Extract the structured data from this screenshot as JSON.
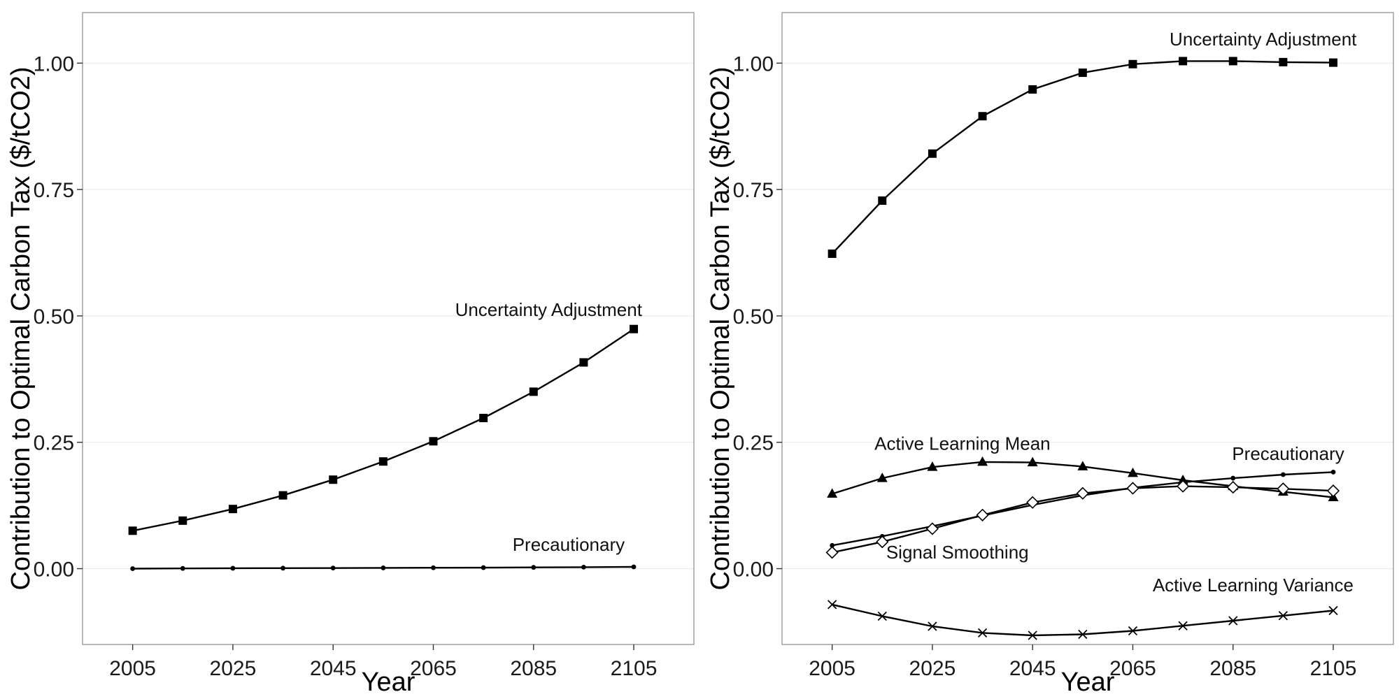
{
  "chart_data": [
    {
      "type": "line",
      "xlabel": "Year",
      "ylabel": "Contribution to Optimal Carbon Tax ($/tCO2)",
      "xlim": [
        1995,
        2117
      ],
      "ylim": [
        -0.15,
        1.1
      ],
      "x_ticks": [
        2005,
        2025,
        2045,
        2065,
        2085,
        2105
      ],
      "y_ticks": [
        0.0,
        0.25,
        0.5,
        0.75,
        1.0
      ],
      "y_tick_labels": [
        "0.00",
        "0.25",
        "0.50",
        "0.75",
        "1.00"
      ],
      "x": [
        2005,
        2015,
        2025,
        2035,
        2045,
        2055,
        2065,
        2075,
        2085,
        2095,
        2105
      ],
      "grid": "horizontal",
      "series": [
        {
          "name": "Uncertainty Adjustment",
          "marker": "square",
          "values": [
            0.075,
            0.095,
            0.118,
            0.145,
            0.176,
            0.212,
            0.252,
            0.298,
            0.35,
            0.408,
            0.474
          ],
          "label_at": [
            2088,
            0.5
          ]
        },
        {
          "name": "Precautionary",
          "marker": "dot",
          "values": [
            0.0,
            0.0005,
            0.0008,
            0.001,
            0.0012,
            0.0015,
            0.0018,
            0.002,
            0.0025,
            0.003,
            0.0035
          ],
          "label_at": [
            2092,
            0.035
          ]
        }
      ]
    },
    {
      "type": "line",
      "xlabel": "Year",
      "ylabel": "Contribution to Optimal Carbon Tax ($/tCO2)",
      "xlim": [
        1995,
        2117
      ],
      "ylim": [
        -0.15,
        1.1
      ],
      "x_ticks": [
        2005,
        2025,
        2045,
        2065,
        2085,
        2105
      ],
      "y_ticks": [
        0.0,
        0.25,
        0.5,
        0.75,
        1.0
      ],
      "y_tick_labels": [
        "0.00",
        "0.25",
        "0.50",
        "0.75",
        "1.00"
      ],
      "x": [
        2005,
        2015,
        2025,
        2035,
        2045,
        2055,
        2065,
        2075,
        2085,
        2095,
        2105
      ],
      "grid": "horizontal",
      "series": [
        {
          "name": "Uncertainty Adjustment",
          "marker": "square",
          "values": [
            0.623,
            0.728,
            0.821,
            0.895,
            0.948,
            0.981,
            0.998,
            1.004,
            1.004,
            1.002,
            1.001
          ],
          "label_at": [
            2091,
            1.035
          ]
        },
        {
          "name": "Active Learning Mean",
          "marker": "triangle",
          "values": [
            0.148,
            0.179,
            0.201,
            0.211,
            0.21,
            0.202,
            0.189,
            0.175,
            0.163,
            0.152,
            0.141
          ],
          "label_at": [
            2031,
            0.235
          ]
        },
        {
          "name": "Precautionary",
          "marker": "dot",
          "values": [
            0.046,
            0.064,
            0.084,
            0.105,
            0.126,
            0.145,
            0.16,
            0.171,
            0.179,
            0.186,
            0.191
          ],
          "label_at": [
            2096,
            0.215
          ]
        },
        {
          "name": "Signal Smoothing",
          "marker": "diamond",
          "values": [
            0.032,
            0.053,
            0.079,
            0.106,
            0.131,
            0.149,
            0.159,
            0.163,
            0.161,
            0.158,
            0.154
          ],
          "label_at": [
            2030,
            0.02
          ]
        },
        {
          "name": "Active Learning Variance",
          "marker": "cross",
          "values": [
            -0.071,
            -0.094,
            -0.114,
            -0.127,
            -0.132,
            -0.13,
            -0.123,
            -0.113,
            -0.103,
            -0.093,
            -0.083
          ],
          "label_at": [
            2089,
            -0.045
          ]
        }
      ]
    }
  ]
}
